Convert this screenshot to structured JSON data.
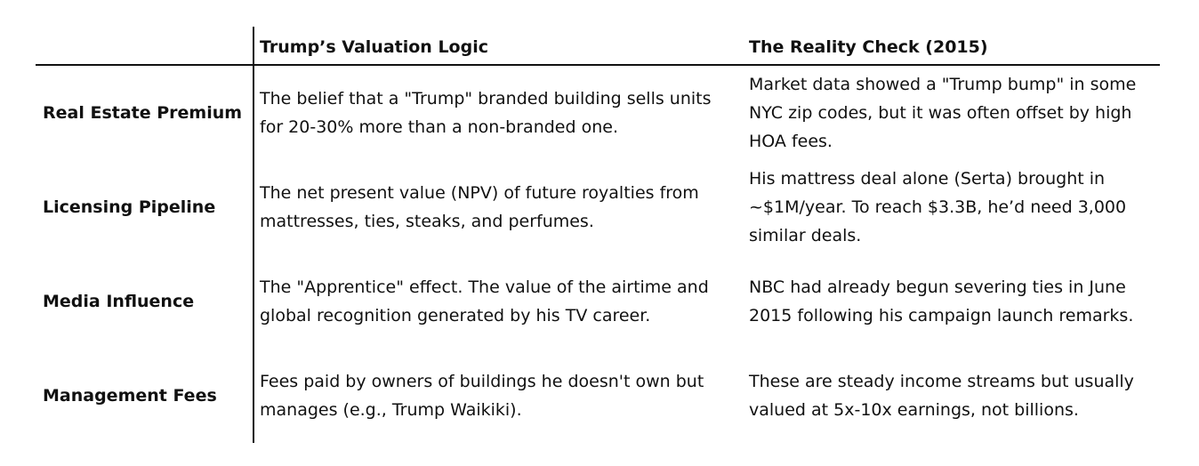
{
  "header": {
    "col1": "Trump’s Valuation Logic",
    "col2": "The Reality Check (2015)"
  },
  "rows": [
    {
      "label": "Real Estate Premium",
      "logic": "The belief that a \"Trump\" branded building sells units for 20-30% more than a non-branded one.",
      "reality": "Market data showed a \"Trump bump\" in some NYC zip codes, but it was often offset by high HOA fees."
    },
    {
      "label": "Licensing Pipeline",
      "logic": "The net present value (NPV) of future royalties from mattresses, ties, steaks, and perfumes.",
      "reality": "His mattress deal alone (Serta) brought in ~$1M/year. To reach $3.3B, he’d need 3,000 similar deals."
    },
    {
      "label": "Media Influence",
      "logic": "The \"Apprentice\" effect. The value of the airtime and global recognition generated by his TV career.",
      "reality": "NBC had already begun severing ties in June 2015 following his campaign launch remarks."
    },
    {
      "label": "Management Fees",
      "logic": "Fees paid by owners of buildings he doesn't own but manages (e.g., Trump Waikiki).",
      "reality": "These are steady income streams but usually valued at 5x-10x earnings, not billions."
    }
  ]
}
